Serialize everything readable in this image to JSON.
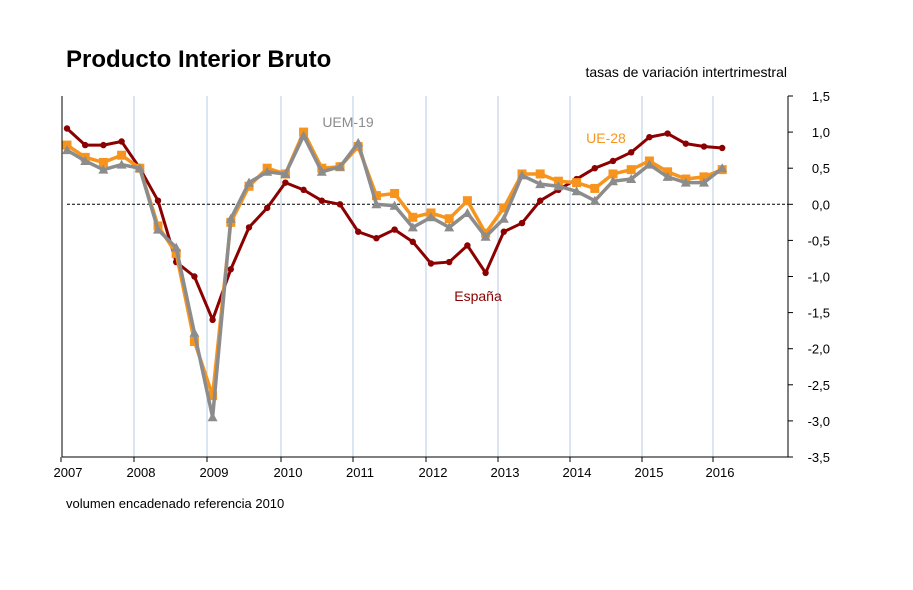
{
  "chart_data": {
    "type": "line",
    "title": "Producto Interior Bruto",
    "subtitle": "tasas de variación intertrimestral",
    "footnote": "volumen encadenado referencia 2010",
    "ylim": [
      -3.5,
      1.5
    ],
    "yticks": [
      "1,5",
      "1,0",
      "0,5",
      "0,0",
      "-0,5",
      "-1,0",
      "-1,5",
      "-2,0",
      "-2,5",
      "-3,0",
      "-3,5"
    ],
    "ytick_values": [
      1.5,
      1.0,
      0.5,
      0.0,
      -0.5,
      -1.0,
      -1.5,
      -2.0,
      -2.5,
      -3.0,
      -3.5
    ],
    "year_labels": [
      "2007",
      "2008",
      "2009",
      "2010",
      "2011",
      "2012",
      "2013",
      "2014",
      "2015",
      "2016"
    ],
    "grid": "vertical",
    "colors": {
      "espana": "#8b0000",
      "ue28": "#f7941d",
      "uem19": "#8c8c8c",
      "grid": "#b8cce4"
    },
    "x": [
      "2007T1",
      "2007T2",
      "2007T3",
      "2007T4",
      "2008T1",
      "2008T2",
      "2008T3",
      "2008T4",
      "2009T1",
      "2009T2",
      "2009T3",
      "2009T4",
      "2010T1",
      "2010T2",
      "2010T3",
      "2010T4",
      "2011T1",
      "2011T2",
      "2011T3",
      "2011T4",
      "2012T1",
      "2012T2",
      "2012T3",
      "2012T4",
      "2013T1",
      "2013T2",
      "2013T3",
      "2013T4",
      "2014T1",
      "2014T2",
      "2014T3",
      "2014T4",
      "2015T1",
      "2015T2",
      "2015T3",
      "2015T4",
      "2016T1"
    ],
    "series": [
      {
        "name": "España",
        "key": "espana",
        "values": [
          1.05,
          0.82,
          0.82,
          0.87,
          0.5,
          0.05,
          -0.8,
          -1.0,
          -1.6,
          -0.9,
          -0.32,
          -0.05,
          0.3,
          0.2,
          0.05,
          0.0,
          -0.38,
          -0.47,
          -0.35,
          -0.52,
          -0.82,
          -0.8,
          -0.57,
          -0.95,
          -0.38,
          -0.26,
          0.05,
          0.2,
          0.35,
          0.5,
          0.6,
          0.72,
          0.93,
          0.98,
          0.84,
          0.8,
          0.78
        ]
      },
      {
        "name": "UE-28",
        "key": "ue28",
        "values": [
          0.82,
          0.65,
          0.58,
          0.68,
          0.5,
          -0.3,
          -0.68,
          -1.9,
          -2.65,
          -0.25,
          0.25,
          0.5,
          0.42,
          1.0,
          0.5,
          0.52,
          0.8,
          0.12,
          0.15,
          -0.18,
          -0.12,
          -0.2,
          0.05,
          -0.4,
          -0.05,
          0.42,
          0.42,
          0.32,
          0.3,
          0.22,
          0.42,
          0.48,
          0.6,
          0.45,
          0.35,
          0.38,
          0.48
        ]
      },
      {
        "name": "UEM-19",
        "key": "uem19",
        "values": [
          0.75,
          0.6,
          0.48,
          0.55,
          0.5,
          -0.35,
          -0.6,
          -1.78,
          -2.95,
          -0.2,
          0.3,
          0.45,
          0.42,
          0.95,
          0.45,
          0.52,
          0.85,
          0.0,
          -0.02,
          -0.32,
          -0.18,
          -0.32,
          -0.12,
          -0.45,
          -0.2,
          0.4,
          0.28,
          0.25,
          0.18,
          0.05,
          0.32,
          0.35,
          0.55,
          0.38,
          0.3,
          0.3,
          0.5
        ]
      }
    ]
  }
}
